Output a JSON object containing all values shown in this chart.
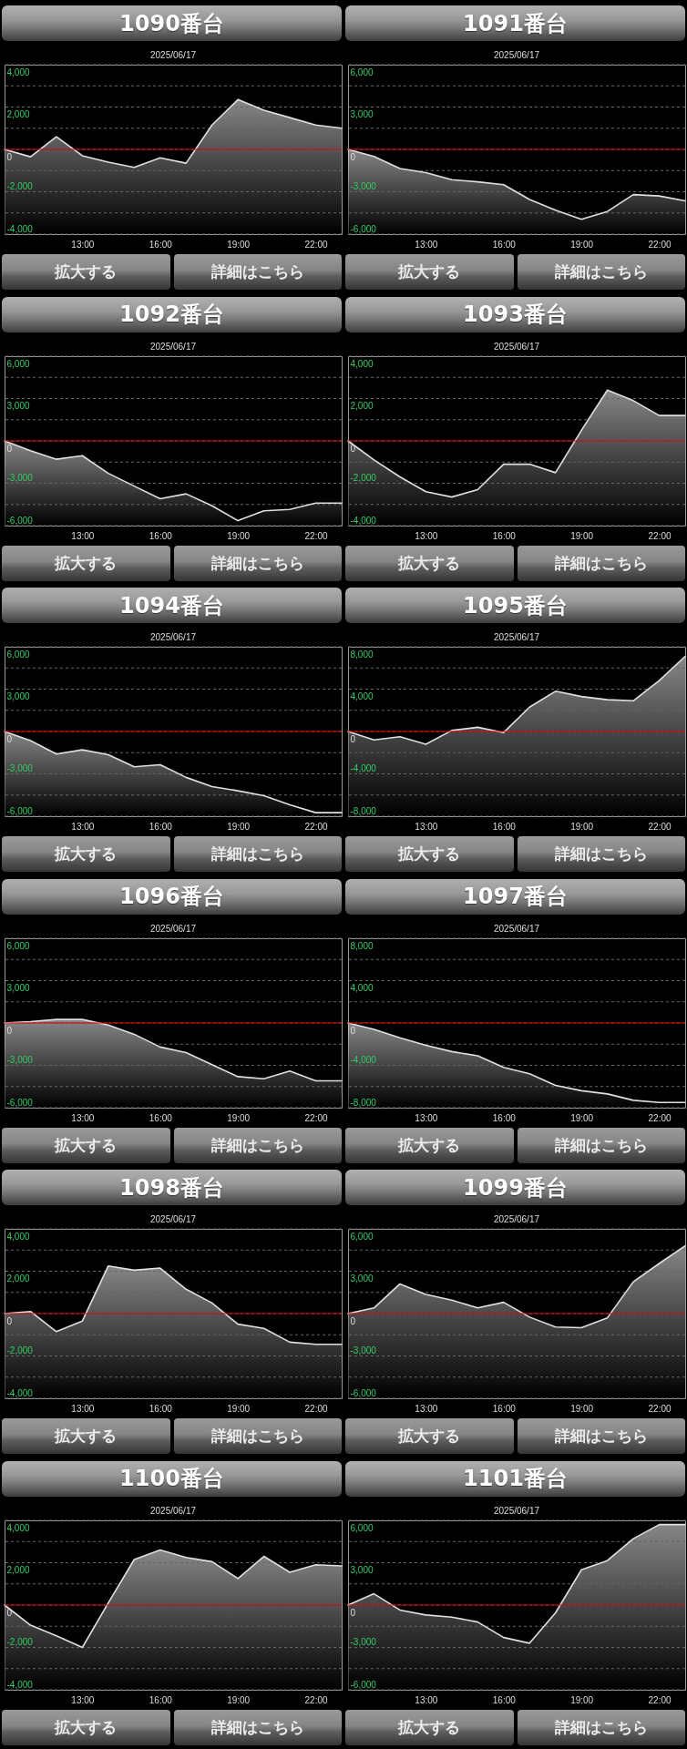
{
  "chart_data": [
    {
      "type": "line",
      "title": "1090番台",
      "subtitle": "2025/06/17",
      "x": [
        10,
        11,
        12,
        13,
        14,
        15,
        16,
        17,
        18,
        19,
        20,
        21,
        22,
        23
      ],
      "series": [
        {
          "color": "#e0e0e0",
          "values": [
            0,
            -350,
            600,
            -300,
            -600,
            -850,
            -400,
            -650,
            1150,
            2350,
            1850,
            1500,
            1150,
            1000
          ],
          "upper": [
            0,
            -350,
            600,
            -300,
            -600,
            -850,
            -400,
            -650,
            1150,
            2350,
            1850,
            1500,
            1150,
            1000
          ],
          "lower": [
            -4000,
            -4000,
            -4000,
            -4000,
            -4000,
            -4000,
            -4000,
            -4000,
            -4000,
            -4000,
            -4000,
            -4000,
            -4000,
            -4000
          ]
        }
      ],
      "xlim": [
        10,
        23
      ],
      "xticks": [
        {
          "value": 13,
          "label": "13:00"
        },
        {
          "value": 16,
          "label": "16:00"
        },
        {
          "value": 19,
          "label": "19:00"
        },
        {
          "value": 22,
          "label": "22:00"
        }
      ],
      "ylim": [
        -4000,
        4000
      ],
      "yticks": [
        {
          "value": 4000,
          "label": "4,000"
        },
        {
          "value": 3000,
          "label": null
        },
        {
          "value": 2000,
          "label": "2,000"
        },
        {
          "value": 1000,
          "label": null
        },
        {
          "value": 0,
          "label": "0"
        },
        {
          "value": -1000,
          "label": null
        },
        {
          "value": -2000,
          "label": "-2,000"
        },
        {
          "value": -3000,
          "label": null
        },
        {
          "value": -4000,
          "label": "-4,000"
        }
      ],
      "grid": "y",
      "ref_lines": [
        {
          "axis": "y",
          "value": 0,
          "color": "#e00000"
        }
      ],
      "annotations": [
        "拡大する",
        "詳細はこちら"
      ]
    },
    {
      "type": "line",
      "title": "1091番台",
      "subtitle": "2025/06/17",
      "x": [
        10,
        11,
        12,
        13,
        14,
        15,
        16,
        17,
        18,
        19,
        20,
        21,
        22,
        23
      ],
      "series": [
        {
          "color": "#e0e0e0",
          "values": [
            0,
            -500,
            -1350,
            -1650,
            -2150,
            -2300,
            -2500,
            -3550,
            -4300,
            -4950,
            -4400,
            -3200,
            -3300,
            -3650
          ],
          "upper": [
            0,
            -500,
            -1350,
            -1650,
            -2150,
            -2300,
            -2500,
            -3550,
            -4300,
            -4950,
            -4400,
            -3200,
            -3300,
            -3650
          ],
          "lower": [
            -6000,
            -6000,
            -6000,
            -6000,
            -6000,
            -6000,
            -6000,
            -6000,
            -6000,
            -6000,
            -6000,
            -6000,
            -6000,
            -6000
          ]
        }
      ],
      "xlim": [
        10,
        23
      ],
      "xticks": [
        {
          "value": 13,
          "label": "13:00"
        },
        {
          "value": 16,
          "label": "16:00"
        },
        {
          "value": 19,
          "label": "19:00"
        },
        {
          "value": 22,
          "label": "22:00"
        }
      ],
      "ylim": [
        -6000,
        6000
      ],
      "yticks": [
        {
          "value": 6000,
          "label": "6,000"
        },
        {
          "value": 4500,
          "label": null
        },
        {
          "value": 3000,
          "label": "3,000"
        },
        {
          "value": 1500,
          "label": null
        },
        {
          "value": 0,
          "label": "0"
        },
        {
          "value": -1500,
          "label": null
        },
        {
          "value": -3000,
          "label": "-3,000"
        },
        {
          "value": -4500,
          "label": null
        },
        {
          "value": -6000,
          "label": "-6,000"
        }
      ],
      "grid": "y",
      "ref_lines": [
        {
          "axis": "y",
          "value": 0,
          "color": "#e00000"
        }
      ],
      "annotations": [
        "拡大する",
        "詳細はこちら"
      ]
    },
    {
      "type": "line",
      "title": "1092番台",
      "subtitle": "2025/06/17",
      "x": [
        10,
        11,
        12,
        13,
        14,
        15,
        16,
        17,
        18,
        19,
        20,
        21,
        22,
        23
      ],
      "series": [
        {
          "color": "#e0e0e0",
          "values": [
            0,
            -700,
            -1300,
            -1050,
            -2300,
            -3200,
            -4100,
            -3750,
            -4600,
            -5650,
            -4950,
            -4850,
            -4400,
            -4400
          ],
          "upper": [
            0,
            -700,
            -1300,
            -1050,
            -2300,
            -3200,
            -4100,
            -3750,
            -4600,
            -5650,
            -4950,
            -4850,
            -4400,
            -4400
          ],
          "lower": [
            -6000,
            -6000,
            -6000,
            -6000,
            -6000,
            -6000,
            -6000,
            -6000,
            -6000,
            -6000,
            -6000,
            -6000,
            -6000,
            -6000
          ]
        }
      ],
      "xlim": [
        10,
        23
      ],
      "xticks": [
        {
          "value": 13,
          "label": "13:00"
        },
        {
          "value": 16,
          "label": "16:00"
        },
        {
          "value": 19,
          "label": "19:00"
        },
        {
          "value": 22,
          "label": "22:00"
        }
      ],
      "ylim": [
        -6000,
        6000
      ],
      "yticks": [
        {
          "value": 6000,
          "label": "6,000"
        },
        {
          "value": 4500,
          "label": null
        },
        {
          "value": 3000,
          "label": "3,000"
        },
        {
          "value": 1500,
          "label": null
        },
        {
          "value": 0,
          "label": "0"
        },
        {
          "value": -1500,
          "label": null
        },
        {
          "value": -3000,
          "label": "-3,000"
        },
        {
          "value": -4500,
          "label": null
        },
        {
          "value": -6000,
          "label": "-6,000"
        }
      ],
      "grid": "y",
      "ref_lines": [
        {
          "axis": "y",
          "value": 0,
          "color": "#e00000"
        }
      ],
      "annotations": [
        "拡大する",
        "詳細はこちら"
      ]
    },
    {
      "type": "line",
      "title": "1093番台",
      "subtitle": "2025/06/17",
      "x": [
        10,
        11,
        12,
        13,
        14,
        15,
        16,
        17,
        18,
        19,
        20,
        21,
        22,
        23
      ],
      "series": [
        {
          "color": "#e0e0e0",
          "values": [
            0,
            -900,
            -1700,
            -2400,
            -2650,
            -2300,
            -1100,
            -1100,
            -1500,
            500,
            2400,
            1900,
            1200,
            1200
          ],
          "upper": [
            0,
            -900,
            -1700,
            -2400,
            -2650,
            -2300,
            -1100,
            -1100,
            -1500,
            500,
            2400,
            1900,
            1200,
            1200
          ],
          "lower": [
            -4000,
            -4000,
            -4000,
            -4000,
            -4000,
            -4000,
            -4000,
            -4000,
            -4000,
            -4000,
            -4000,
            -4000,
            -4000,
            -4000
          ]
        }
      ],
      "xlim": [
        10,
        23
      ],
      "xticks": [
        {
          "value": 13,
          "label": "13:00"
        },
        {
          "value": 16,
          "label": "16:00"
        },
        {
          "value": 19,
          "label": "19:00"
        },
        {
          "value": 22,
          "label": "22:00"
        }
      ],
      "ylim": [
        -4000,
        4000
      ],
      "yticks": [
        {
          "value": 4000,
          "label": "4,000"
        },
        {
          "value": 3000,
          "label": null
        },
        {
          "value": 2000,
          "label": "2,000"
        },
        {
          "value": 1000,
          "label": null
        },
        {
          "value": 0,
          "label": "0"
        },
        {
          "value": -1000,
          "label": null
        },
        {
          "value": -2000,
          "label": "-2,000"
        },
        {
          "value": -3000,
          "label": null
        },
        {
          "value": -4000,
          "label": "-4,000"
        }
      ],
      "grid": "y",
      "ref_lines": [
        {
          "axis": "y",
          "value": 0,
          "color": "#e00000"
        }
      ],
      "annotations": [
        "拡大する",
        "詳細はこちら"
      ]
    },
    {
      "type": "line",
      "title": "1094番台",
      "subtitle": "2025/06/17",
      "x": [
        10,
        11,
        12,
        13,
        14,
        15,
        16,
        17,
        18,
        19,
        20,
        21,
        22,
        23
      ],
      "series": [
        {
          "color": "#e0e0e0",
          "values": [
            0,
            -650,
            -1600,
            -1300,
            -1650,
            -2500,
            -2350,
            -3250,
            -3900,
            -4200,
            -4550,
            -5200,
            -5750,
            -5750
          ],
          "upper": [
            0,
            -650,
            -1600,
            -1300,
            -1650,
            -2500,
            -2350,
            -3250,
            -3900,
            -4200,
            -4550,
            -5200,
            -5750,
            -5750
          ],
          "lower": [
            -6000,
            -6000,
            -6000,
            -6000,
            -6000,
            -6000,
            -6000,
            -6000,
            -6000,
            -6000,
            -6000,
            -6000,
            -6000,
            -6000
          ]
        }
      ],
      "xlim": [
        10,
        23
      ],
      "xticks": [
        {
          "value": 13,
          "label": "13:00"
        },
        {
          "value": 16,
          "label": "16:00"
        },
        {
          "value": 19,
          "label": "19:00"
        },
        {
          "value": 22,
          "label": "22:00"
        }
      ],
      "ylim": [
        -6000,
        6000
      ],
      "yticks": [
        {
          "value": 6000,
          "label": "6,000"
        },
        {
          "value": 4500,
          "label": null
        },
        {
          "value": 3000,
          "label": "3,000"
        },
        {
          "value": 1500,
          "label": null
        },
        {
          "value": 0,
          "label": "0"
        },
        {
          "value": -1500,
          "label": null
        },
        {
          "value": -3000,
          "label": "-3,000"
        },
        {
          "value": -4500,
          "label": null
        },
        {
          "value": -6000,
          "label": "-6,000"
        }
      ],
      "grid": "y",
      "ref_lines": [
        {
          "axis": "y",
          "value": 0,
          "color": "#e00000"
        }
      ],
      "annotations": [
        "拡大する",
        "詳細はこちら"
      ]
    },
    {
      "type": "line",
      "title": "1095番台",
      "subtitle": "2025/06/17",
      "x": [
        10,
        11,
        12,
        13,
        14,
        15,
        16,
        17,
        18,
        19,
        20,
        21,
        22,
        23
      ],
      "series": [
        {
          "color": "#e0e0e0",
          "values": [
            0,
            -800,
            -500,
            -1200,
            100,
            400,
            -100,
            2300,
            3800,
            3300,
            3000,
            2900,
            4800,
            7100
          ],
          "upper": [
            0,
            -800,
            -500,
            -1200,
            100,
            400,
            -100,
            2300,
            3800,
            3300,
            3000,
            2900,
            4800,
            7100
          ],
          "lower": [
            -8000,
            -8000,
            -8000,
            -8000,
            -8000,
            -8000,
            -8000,
            -8000,
            -8000,
            -8000,
            -8000,
            -8000,
            -8000,
            -8000
          ]
        }
      ],
      "xlim": [
        10,
        23
      ],
      "xticks": [
        {
          "value": 13,
          "label": "13:00"
        },
        {
          "value": 16,
          "label": "16:00"
        },
        {
          "value": 19,
          "label": "19:00"
        },
        {
          "value": 22,
          "label": "22:00"
        }
      ],
      "ylim": [
        -8000,
        8000
      ],
      "yticks": [
        {
          "value": 8000,
          "label": "8,000"
        },
        {
          "value": 6000,
          "label": null
        },
        {
          "value": 4000,
          "label": "4,000"
        },
        {
          "value": 2000,
          "label": null
        },
        {
          "value": 0,
          "label": "0"
        },
        {
          "value": -2000,
          "label": null
        },
        {
          "value": -4000,
          "label": "-4,000"
        },
        {
          "value": -6000,
          "label": null
        },
        {
          "value": -8000,
          "label": "-8,000"
        }
      ],
      "grid": "y",
      "ref_lines": [
        {
          "axis": "y",
          "value": 0,
          "color": "#e00000"
        }
      ],
      "annotations": [
        "拡大する",
        "詳細はこちら"
      ]
    },
    {
      "type": "line",
      "title": "1096番台",
      "subtitle": "2025/06/17",
      "x": [
        10,
        11,
        12,
        13,
        14,
        15,
        16,
        17,
        18,
        19,
        20,
        21,
        22,
        23
      ],
      "series": [
        {
          "color": "#e0e0e0",
          "values": [
            0,
            100,
            250,
            250,
            -150,
            -800,
            -1700,
            -2100,
            -2950,
            -3800,
            -3950,
            -3400,
            -4100,
            -4100
          ],
          "upper": [
            0,
            100,
            250,
            250,
            -150,
            -800,
            -1700,
            -2100,
            -2950,
            -3800,
            -3950,
            -3400,
            -4100,
            -4100
          ],
          "lower": [
            -6000,
            -6000,
            -6000,
            -6000,
            -6000,
            -6000,
            -6000,
            -6000,
            -6000,
            -6000,
            -6000,
            -6000,
            -6000,
            -6000
          ]
        }
      ],
      "xlim": [
        10,
        23
      ],
      "xticks": [
        {
          "value": 13,
          "label": "13:00"
        },
        {
          "value": 16,
          "label": "16:00"
        },
        {
          "value": 19,
          "label": "19:00"
        },
        {
          "value": 22,
          "label": "22:00"
        }
      ],
      "ylim": [
        -6000,
        6000
      ],
      "yticks": [
        {
          "value": 6000,
          "label": "6,000"
        },
        {
          "value": 4500,
          "label": null
        },
        {
          "value": 3000,
          "label": "3,000"
        },
        {
          "value": 1500,
          "label": null
        },
        {
          "value": 0,
          "label": "0"
        },
        {
          "value": -1500,
          "label": null
        },
        {
          "value": -3000,
          "label": "-3,000"
        },
        {
          "value": -4500,
          "label": null
        },
        {
          "value": -6000,
          "label": "-6,000"
        }
      ],
      "grid": "y",
      "ref_lines": [
        {
          "axis": "y",
          "value": 0,
          "color": "#e00000"
        }
      ],
      "annotations": [
        "拡大する",
        "詳細はこちら"
      ]
    },
    {
      "type": "line",
      "title": "1097番台",
      "subtitle": "2025/06/17",
      "x": [
        10,
        11,
        12,
        13,
        14,
        15,
        16,
        17,
        18,
        19,
        20,
        21,
        22,
        23
      ],
      "series": [
        {
          "color": "#e0e0e0",
          "values": [
            0,
            -600,
            -1400,
            -2100,
            -2700,
            -3100,
            -4200,
            -4800,
            -5900,
            -6400,
            -6700,
            -7300,
            -7500,
            -7500
          ],
          "upper": [
            0,
            -600,
            -1400,
            -2100,
            -2700,
            -3100,
            -4200,
            -4800,
            -5900,
            -6400,
            -6700,
            -7300,
            -7500,
            -7500
          ],
          "lower": [
            -8000,
            -8000,
            -8000,
            -8000,
            -8000,
            -8000,
            -8000,
            -8000,
            -8000,
            -8000,
            -8000,
            -8000,
            -8000,
            -8000
          ]
        }
      ],
      "xlim": [
        10,
        23
      ],
      "xticks": [
        {
          "value": 13,
          "label": "13:00"
        },
        {
          "value": 16,
          "label": "16:00"
        },
        {
          "value": 19,
          "label": "19:00"
        },
        {
          "value": 22,
          "label": "22:00"
        }
      ],
      "ylim": [
        -8000,
        8000
      ],
      "yticks": [
        {
          "value": 8000,
          "label": "8,000"
        },
        {
          "value": 6000,
          "label": null
        },
        {
          "value": 4000,
          "label": "4,000"
        },
        {
          "value": 2000,
          "label": null
        },
        {
          "value": 0,
          "label": "0"
        },
        {
          "value": -2000,
          "label": null
        },
        {
          "value": -4000,
          "label": "-4,000"
        },
        {
          "value": -6000,
          "label": null
        },
        {
          "value": -8000,
          "label": "-8,000"
        }
      ],
      "grid": "y",
      "ref_lines": [
        {
          "axis": "y",
          "value": 0,
          "color": "#e00000"
        }
      ],
      "annotations": [
        "拡大する",
        "詳細はこちら"
      ]
    },
    {
      "type": "line",
      "title": "1098番台",
      "subtitle": "2025/06/17",
      "x": [
        10,
        11,
        12,
        13,
        14,
        15,
        16,
        17,
        18,
        19,
        20,
        21,
        22,
        23
      ],
      "series": [
        {
          "color": "#e0e0e0",
          "values": [
            0,
            100,
            -850,
            -350,
            2250,
            2050,
            2150,
            1150,
            500,
            -500,
            -700,
            -1350,
            -1450,
            -1450
          ],
          "upper": [
            0,
            100,
            -850,
            -350,
            2250,
            2050,
            2150,
            1150,
            500,
            -500,
            -700,
            -1350,
            -1450,
            -1450
          ],
          "lower": [
            -4000,
            -4000,
            -4000,
            -4000,
            -4000,
            -4000,
            -4000,
            -4000,
            -4000,
            -4000,
            -4000,
            -4000,
            -4000,
            -4000
          ]
        }
      ],
      "xlim": [
        10,
        23
      ],
      "xticks": [
        {
          "value": 13,
          "label": "13:00"
        },
        {
          "value": 16,
          "label": "16:00"
        },
        {
          "value": 19,
          "label": "19:00"
        },
        {
          "value": 22,
          "label": "22:00"
        }
      ],
      "ylim": [
        -4000,
        4000
      ],
      "yticks": [
        {
          "value": 4000,
          "label": "4,000"
        },
        {
          "value": 3000,
          "label": null
        },
        {
          "value": 2000,
          "label": "2,000"
        },
        {
          "value": 1000,
          "label": null
        },
        {
          "value": 0,
          "label": "0"
        },
        {
          "value": -1000,
          "label": null
        },
        {
          "value": -2000,
          "label": "-2,000"
        },
        {
          "value": -3000,
          "label": null
        },
        {
          "value": -4000,
          "label": "-4,000"
        }
      ],
      "grid": "y",
      "ref_lines": [
        {
          "axis": "y",
          "value": 0,
          "color": "#e00000"
        }
      ],
      "annotations": [
        "拡大する",
        "詳細はこちら"
      ]
    },
    {
      "type": "line",
      "title": "1099番台",
      "subtitle": "2025/06/17",
      "x": [
        10,
        11,
        12,
        13,
        14,
        15,
        16,
        17,
        18,
        19,
        20,
        21,
        22,
        23
      ],
      "series": [
        {
          "color": "#e0e0e0",
          "values": [
            0,
            400,
            2100,
            1350,
            950,
            400,
            800,
            -250,
            -950,
            -1000,
            -300,
            2250,
            3550,
            4800
          ],
          "upper": [
            0,
            400,
            2100,
            1350,
            950,
            400,
            800,
            -250,
            -950,
            -1000,
            -300,
            2250,
            3550,
            4800
          ],
          "lower": [
            -6000,
            -6000,
            -6000,
            -6000,
            -6000,
            -6000,
            -6000,
            -6000,
            -6000,
            -6000,
            -6000,
            -6000,
            -6000,
            -6000
          ]
        }
      ],
      "xlim": [
        10,
        23
      ],
      "xticks": [
        {
          "value": 13,
          "label": "13:00"
        },
        {
          "value": 16,
          "label": "16:00"
        },
        {
          "value": 19,
          "label": "19:00"
        },
        {
          "value": 22,
          "label": "22:00"
        }
      ],
      "ylim": [
        -6000,
        6000
      ],
      "yticks": [
        {
          "value": 6000,
          "label": "6,000"
        },
        {
          "value": 4500,
          "label": null
        },
        {
          "value": 3000,
          "label": "3,000"
        },
        {
          "value": 1500,
          "label": null
        },
        {
          "value": 0,
          "label": "0"
        },
        {
          "value": -1500,
          "label": null
        },
        {
          "value": -3000,
          "label": "-3,000"
        },
        {
          "value": -4500,
          "label": null
        },
        {
          "value": -6000,
          "label": "-6,000"
        }
      ],
      "grid": "y",
      "ref_lines": [
        {
          "axis": "y",
          "value": 0,
          "color": "#e00000"
        }
      ],
      "annotations": [
        "拡大する",
        "詳細はこちら"
      ]
    },
    {
      "type": "line",
      "title": "1100番台",
      "subtitle": "2025/06/17",
      "x": [
        10,
        11,
        12,
        13,
        14,
        15,
        16,
        17,
        18,
        19,
        20,
        21,
        22,
        23
      ],
      "series": [
        {
          "color": "#e0e0e0",
          "values": [
            0,
            -950,
            -1450,
            -2000,
            100,
            2150,
            2600,
            2250,
            2050,
            1250,
            2300,
            1550,
            1900,
            1850
          ],
          "upper": [
            0,
            -950,
            -1450,
            -2000,
            100,
            2150,
            2600,
            2250,
            2050,
            1250,
            2300,
            1550,
            1900,
            1850
          ],
          "lower": [
            -4000,
            -4000,
            -4000,
            -4000,
            -4000,
            -4000,
            -4000,
            -4000,
            -4000,
            -4000,
            -4000,
            -4000,
            -4000,
            -4000
          ]
        }
      ],
      "xlim": [
        10,
        23
      ],
      "xticks": [
        {
          "value": 13,
          "label": "13:00"
        },
        {
          "value": 16,
          "label": "16:00"
        },
        {
          "value": 19,
          "label": "19:00"
        },
        {
          "value": 22,
          "label": "22:00"
        }
      ],
      "ylim": [
        -4000,
        4000
      ],
      "yticks": [
        {
          "value": 4000,
          "label": "4,000"
        },
        {
          "value": 3000,
          "label": null
        },
        {
          "value": 2000,
          "label": "2,000"
        },
        {
          "value": 1000,
          "label": null
        },
        {
          "value": 0,
          "label": "0"
        },
        {
          "value": -1000,
          "label": null
        },
        {
          "value": -2000,
          "label": "-2,000"
        },
        {
          "value": -3000,
          "label": null
        },
        {
          "value": -4000,
          "label": "-4,000"
        }
      ],
      "grid": "y",
      "ref_lines": [
        {
          "axis": "y",
          "value": 0,
          "color": "#e00000"
        }
      ],
      "annotations": [
        "拡大する",
        "詳細はこちら"
      ]
    },
    {
      "type": "line",
      "title": "1101番台",
      "subtitle": "2025/06/17",
      "x": [
        10,
        11,
        12,
        13,
        14,
        15,
        16,
        17,
        18,
        19,
        20,
        21,
        22,
        23
      ],
      "series": [
        {
          "color": "#e0e0e0",
          "values": [
            0,
            800,
            -350,
            -700,
            -850,
            -1200,
            -2300,
            -2700,
            -550,
            2500,
            3150,
            4700,
            5700,
            5700
          ],
          "upper": [
            0,
            800,
            -350,
            -700,
            -850,
            -1200,
            -2300,
            -2700,
            -550,
            2500,
            3150,
            4700,
            5700,
            5700
          ],
          "lower": [
            -6000,
            -6000,
            -6000,
            -6000,
            -6000,
            -6000,
            -6000,
            -6000,
            -6000,
            -6000,
            -6000,
            -6000,
            -6000,
            -6000
          ]
        }
      ],
      "xlim": [
        10,
        23
      ],
      "xticks": [
        {
          "value": 13,
          "label": "13:00"
        },
        {
          "value": 16,
          "label": "16:00"
        },
        {
          "value": 19,
          "label": "19:00"
        },
        {
          "value": 22,
          "label": "22:00"
        }
      ],
      "ylim": [
        -6000,
        6000
      ],
      "yticks": [
        {
          "value": 6000,
          "label": "6,000"
        },
        {
          "value": 4500,
          "label": null
        },
        {
          "value": 3000,
          "label": "3,000"
        },
        {
          "value": 1500,
          "label": null
        },
        {
          "value": 0,
          "label": "0"
        },
        {
          "value": -1500,
          "label": null
        },
        {
          "value": -3000,
          "label": "-3,000"
        },
        {
          "value": -4500,
          "label": null
        },
        {
          "value": -6000,
          "label": "-6,000"
        }
      ],
      "grid": "y",
      "ref_lines": [
        {
          "axis": "y",
          "value": 0,
          "color": "#e00000"
        }
      ],
      "annotations": [
        "拡大する",
        "詳細はこちら"
      ]
    }
  ]
}
